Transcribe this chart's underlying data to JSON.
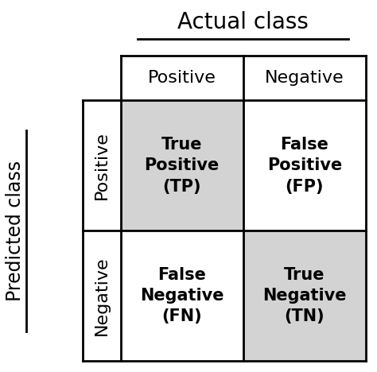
{
  "title": "Actual class",
  "ylabel": "Predicted class",
  "col_headers": [
    "Positive",
    "Negative"
  ],
  "row_headers": [
    "Positive",
    "Negative"
  ],
  "cells": [
    [
      "True\nPositive\n(TP)",
      "False\nPositive\n(FP)"
    ],
    [
      "False\nNegative\n(FN)",
      "True\nNegative\n(TN)"
    ]
  ],
  "cell_colors": [
    [
      "#d3d3d3",
      "#ffffff"
    ],
    [
      "#ffffff",
      "#d3d3d3"
    ]
  ],
  "header_color": "#ffffff",
  "background_color": "#ffffff",
  "text_color": "#000000",
  "border_color": "#000000",
  "title_fontsize": 20,
  "header_fontsize": 16,
  "cell_fontsize": 15,
  "ylabel_fontsize": 17
}
